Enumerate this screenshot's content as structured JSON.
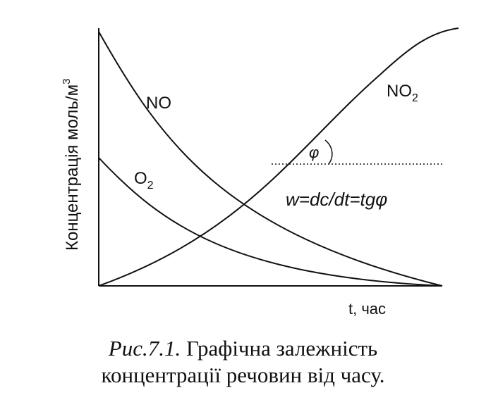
{
  "chart_data": {
    "type": "line",
    "ylabel": "Концентрація моль/м",
    "ylabel_sup": "3",
    "xlabel": "t, час",
    "series": [
      {
        "name": "NO",
        "label": "NO",
        "label_sub": "",
        "x": [
          0,
          1,
          2,
          3,
          4,
          5,
          6,
          7,
          8,
          9,
          10
        ],
        "y": [
          1.0,
          0.61,
          0.37,
          0.22,
          0.13,
          0.08,
          0.05,
          0.03,
          0.015,
          0.007,
          0.0
        ]
      },
      {
        "name": "O2",
        "label": "O",
        "label_sub": "2",
        "x": [
          0,
          1,
          2,
          3,
          4,
          5,
          6,
          7,
          8,
          9,
          10
        ],
        "y": [
          0.5,
          0.3,
          0.18,
          0.12,
          0.08,
          0.055,
          0.04,
          0.028,
          0.018,
          0.008,
          0.0
        ]
      },
      {
        "name": "NO2",
        "label": "NO",
        "label_sub": "2",
        "x": [
          0,
          1,
          2,
          3,
          4,
          5,
          6,
          7,
          8,
          9,
          10
        ],
        "y": [
          0.0,
          0.07,
          0.16,
          0.28,
          0.42,
          0.57,
          0.72,
          0.85,
          0.95,
          1.0,
          1.0
        ]
      }
    ],
    "annotation": {
      "angle_symbol": "φ",
      "formula": "w=dc/dt=tgφ"
    },
    "grid": false,
    "legend": "none"
  },
  "caption": {
    "figure_label": "Рис.7.1.",
    "line1": " Графічна залежність",
    "line2": "концентрації речовин від часу."
  }
}
